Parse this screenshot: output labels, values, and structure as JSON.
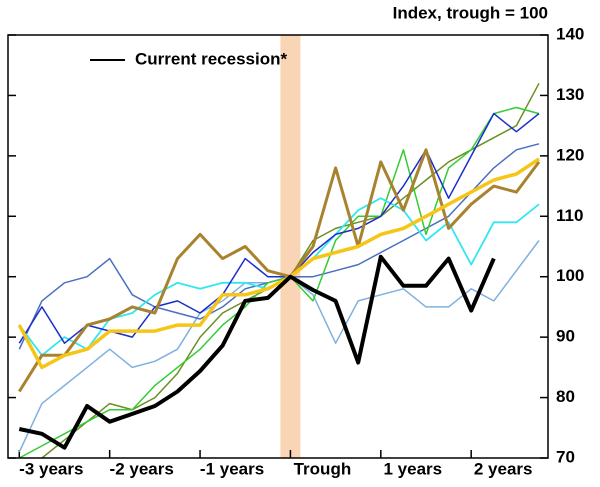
{
  "chart_data": {
    "type": "line",
    "y_label": "Index, trough = 100",
    "x": [
      -12,
      -11,
      -10,
      -9,
      -8,
      -7,
      -6,
      -5,
      -4,
      -3,
      -2,
      -1,
      0,
      1,
      2,
      3,
      4,
      5,
      6,
      7,
      8,
      9,
      10,
      11
    ],
    "xlim": [
      -12.5,
      11.4
    ],
    "xticks": [
      {
        "value": -12,
        "label": "-3 years"
      },
      {
        "value": -8,
        "label": "-2 years"
      },
      {
        "value": -4,
        "label": "-1 years"
      },
      {
        "value": 0,
        "label": "Trough"
      },
      {
        "value": 4,
        "label": "1 years"
      },
      {
        "value": 8,
        "label": "2 years"
      }
    ],
    "ylim": [
      70,
      140
    ],
    "yticks": [
      70,
      80,
      90,
      100,
      110,
      120,
      130,
      140
    ],
    "legend": "top-left",
    "series": [
      {
        "color": "#7fb0e0",
        "width": 1.5,
        "values": [
          71,
          79,
          82,
          85,
          88,
          85,
          86,
          88,
          94,
          96,
          99,
          99,
          100,
          97,
          89,
          96,
          97,
          98,
          95,
          95,
          98,
          96,
          101,
          106
        ]
      },
      {
        "color": "#4a6fc0",
        "width": 1.5,
        "values": [
          88,
          96,
          99,
          100,
          103,
          97,
          95,
          94,
          93,
          95,
          98,
          99,
          100,
          100,
          101,
          102,
          104,
          106,
          108,
          110,
          114,
          118,
          121,
          122
        ]
      },
      {
        "color": "#6b8e23",
        "width": 1.5,
        "values": [
          null,
          70,
          73,
          76,
          79,
          78,
          80,
          84,
          90,
          94,
          96,
          98,
          100,
          106,
          108,
          109,
          110,
          113,
          116,
          119,
          121,
          123,
          125,
          132
        ]
      },
      {
        "color": "#33cc33",
        "width": 1.5,
        "values": [
          70,
          72,
          74,
          76,
          78,
          78,
          82,
          85,
          88,
          92,
          95,
          99,
          100,
          96,
          106,
          110,
          110,
          121,
          107,
          118,
          121,
          127,
          128,
          127
        ]
      },
      {
        "color": "#33e6f0",
        "width": 1.8,
        "values": [
          92,
          87,
          90,
          88,
          93,
          94,
          97,
          99,
          98,
          99,
          99,
          98,
          100,
          103,
          107,
          111,
          113,
          111,
          106,
          109,
          102,
          109,
          109,
          112
        ]
      },
      {
        "color": "#1a2ecc",
        "width": 1.5,
        "values": [
          89,
          95,
          89,
          92,
          91,
          90,
          95,
          96,
          94,
          97,
          103,
          100,
          100,
          104,
          107,
          108,
          110,
          115,
          121,
          113,
          120,
          127,
          124,
          127
        ]
      },
      {
        "color": "#a8822e",
        "width": 3,
        "values": [
          81,
          87,
          87,
          92,
          93,
          95,
          94,
          103,
          107,
          103,
          105,
          101,
          100,
          105,
          118,
          105,
          119,
          111,
          121,
          108,
          112,
          115,
          114,
          119
        ]
      },
      {
        "color": "#f5c518",
        "width": 3.5,
        "values": [
          92,
          85,
          87,
          88,
          91,
          91,
          91,
          92,
          92,
          97,
          97,
          98,
          100,
          103,
          104,
          105,
          107,
          108,
          110,
          112,
          114,
          116,
          117,
          119.5
        ]
      },
      {
        "name": "Current recession*",
        "color": "#000000",
        "width": 4,
        "values": [
          74.8,
          74,
          71.7,
          78.6,
          76,
          77.3,
          78.6,
          81,
          84.4,
          88.6,
          96,
          96.5,
          100,
          97.8,
          96,
          85.8,
          103.3,
          98.5,
          98.5,
          103,
          94.4,
          103,
          null,
          null
        ]
      }
    ]
  }
}
